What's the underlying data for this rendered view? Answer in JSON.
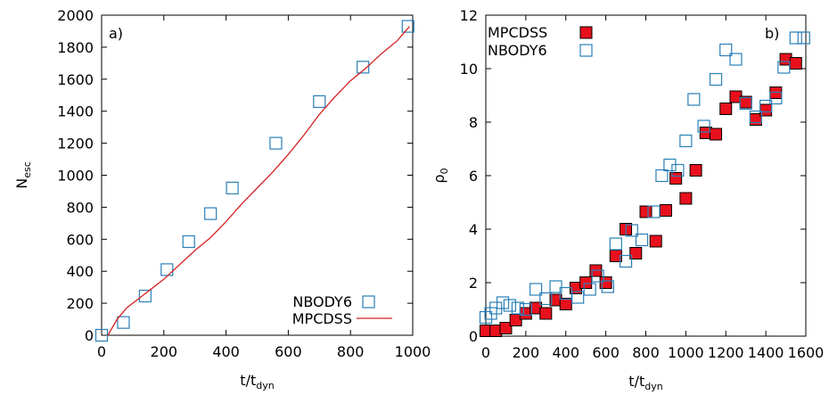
{
  "chart_data": [
    {
      "type": "scatter",
      "panel_label": "a)",
      "xlabel": {
        "main": "t/t",
        "sub": "dyn"
      },
      "ylabel": {
        "main": "N",
        "sub": "esc"
      },
      "xlim": [
        0,
        1000
      ],
      "ylim": [
        0,
        2000
      ],
      "xticks": [
        0,
        200,
        400,
        600,
        800,
        1000
      ],
      "yticks": [
        0,
        200,
        400,
        600,
        800,
        1000,
        1200,
        1400,
        1600,
        1800,
        2000
      ],
      "legend_position": "bottom-right",
      "series": [
        {
          "name": "NBODY6",
          "kind": "open-square",
          "color": "#2a7fb8",
          "x": [
            0,
            70,
            140,
            210,
            280,
            350,
            420,
            560,
            700,
            840,
            985
          ],
          "y": [
            0,
            80,
            245,
            410,
            585,
            760,
            920,
            1200,
            1460,
            1675,
            1930
          ]
        },
        {
          "name": "MPCDSS",
          "kind": "line",
          "color": "#d62020",
          "x": [
            20,
            50,
            80,
            120,
            160,
            200,
            250,
            300,
            350,
            400,
            450,
            500,
            550,
            600,
            650,
            700,
            750,
            800,
            850,
            900,
            950,
            990
          ],
          "y": [
            0,
            100,
            170,
            230,
            290,
            350,
            440,
            530,
            610,
            710,
            820,
            920,
            1020,
            1130,
            1250,
            1380,
            1490,
            1590,
            1670,
            1760,
            1840,
            1930
          ]
        }
      ]
    },
    {
      "type": "scatter",
      "panel_label": "b)",
      "xlabel": {
        "main": "t/t",
        "sub": "dyn"
      },
      "ylabel": {
        "main": "ρ",
        "sub": "0"
      },
      "xlim": [
        0,
        1600
      ],
      "ylim": [
        0,
        12
      ],
      "xticks": [
        0,
        200,
        400,
        600,
        800,
        1000,
        1200,
        1400,
        1600
      ],
      "yticks": [
        0,
        2,
        4,
        6,
        8,
        10,
        12
      ],
      "legend_position": "top-left",
      "series": [
        {
          "name": "MPCDSS",
          "kind": "filled-square",
          "color": "#e8101c",
          "x": [
            0,
            50,
            100,
            150,
            200,
            250,
            300,
            350,
            400,
            450,
            500,
            550,
            600,
            650,
            700,
            750,
            800,
            850,
            900,
            950,
            1000,
            1050,
            1100,
            1150,
            1200,
            1250,
            1300,
            1350,
            1400,
            1450,
            1500,
            1550
          ],
          "y": [
            0.2,
            0.2,
            0.3,
            0.6,
            0.85,
            1.05,
            0.85,
            1.35,
            1.2,
            1.8,
            2.0,
            2.45,
            2.0,
            3.0,
            4.0,
            3.1,
            4.65,
            3.55,
            4.7,
            5.9,
            5.15,
            6.2,
            7.6,
            7.55,
            8.5,
            8.95,
            8.75,
            8.1,
            8.45,
            9.1,
            10.35,
            10.2
          ]
        },
        {
          "name": "NBODY6",
          "kind": "open-square",
          "color": "#2a7fb8",
          "x": [
            0,
            25,
            50,
            85,
            120,
            160,
            200,
            250,
            300,
            350,
            400,
            460,
            520,
            560,
            610,
            650,
            700,
            730,
            780,
            840,
            880,
            920,
            960,
            1000,
            1040,
            1090,
            1150,
            1200,
            1250,
            1300,
            1350,
            1400,
            1450,
            1490,
            1550,
            1590
          ],
          "y": [
            0.7,
            0.85,
            1.05,
            1.25,
            1.15,
            1.05,
            1.0,
            1.75,
            1.4,
            1.85,
            1.6,
            1.45,
            1.75,
            2.25,
            1.85,
            3.45,
            2.8,
            3.95,
            3.6,
            4.65,
            6.0,
            6.4,
            6.2,
            7.3,
            8.85,
            7.85,
            9.6,
            10.7,
            10.35,
            8.7,
            8.2,
            8.6,
            8.9,
            10.05,
            11.15,
            11.15
          ]
        }
      ]
    }
  ]
}
